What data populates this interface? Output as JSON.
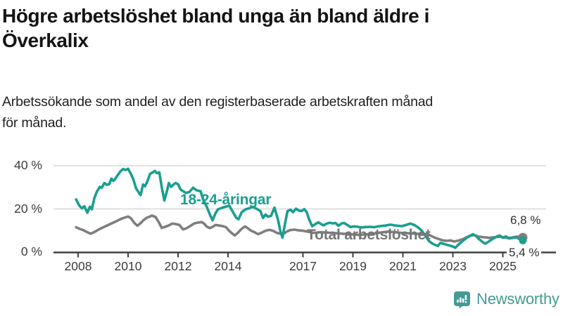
{
  "header": {
    "title_line1": "Högre arbetslöshet bland unga än bland äldre i",
    "title_line2": "Överkalix",
    "subtitle_line1": "Arbetssökande som andel av den registerbaserade arbetskraften månad",
    "subtitle_line2": "för månad."
  },
  "footer": {
    "brand": "Newsworthy"
  },
  "colors": {
    "youth_line": "#1a9e91",
    "total_line": "#7e7e7e",
    "axis": "#404040",
    "grid": "#e1e1e1",
    "tick_text": "#3c3c3c",
    "total_label_text": "#767676",
    "logo_teal": "#459a94"
  },
  "chart_data": {
    "type": "line",
    "title": "Högre arbetslöshet bland unga än bland äldre i Överkalix",
    "subtitle": "Arbetssökande som andel av den registerbaserade arbetskraften månad för månad.",
    "unit": "%",
    "grid": "horizontal-only",
    "x_axis": {
      "range": [
        2007.9,
        2025.9
      ],
      "ticks": [
        {
          "year": 2008,
          "label": "2008"
        },
        {
          "year": 2010,
          "label": "2010"
        },
        {
          "year": 2012,
          "label": "2012"
        },
        {
          "year": 2014,
          "label": "2014"
        },
        {
          "year": 2017,
          "label": "2017"
        },
        {
          "year": 2019,
          "label": "2019"
        },
        {
          "year": 2021,
          "label": "2021"
        },
        {
          "year": 2023,
          "label": "2023"
        },
        {
          "year": 2025,
          "label": "2025"
        }
      ]
    },
    "y_axis": {
      "range": [
        0,
        42
      ],
      "ticks": [
        {
          "value": 0,
          "label": "0 %"
        },
        {
          "value": 20,
          "label": "20 %"
        },
        {
          "value": 40,
          "label": "40 %"
        }
      ]
    },
    "series": [
      {
        "name": "Total arbetslöshet",
        "color": "#7e7e7e",
        "end_label": "6,8 %",
        "end_value": 6.8,
        "points": [
          [
            2007.92,
            11.5
          ],
          [
            2008.05,
            10.8
          ],
          [
            2008.2,
            10.2
          ],
          [
            2008.35,
            9.3
          ],
          [
            2008.5,
            8.5
          ],
          [
            2008.65,
            9.3
          ],
          [
            2008.8,
            10.3
          ],
          [
            2008.95,
            11.2
          ],
          [
            2009.1,
            12.0
          ],
          [
            2009.25,
            12.8
          ],
          [
            2009.4,
            13.6
          ],
          [
            2009.55,
            14.4
          ],
          [
            2009.7,
            15.3
          ],
          [
            2009.85,
            15.9
          ],
          [
            2010.0,
            16.5
          ],
          [
            2010.12,
            15.6
          ],
          [
            2010.25,
            13.5
          ],
          [
            2010.37,
            12.2
          ],
          [
            2010.5,
            13.4
          ],
          [
            2010.62,
            14.8
          ],
          [
            2010.75,
            15.9
          ],
          [
            2010.88,
            16.5
          ],
          [
            2010.95,
            16.9
          ],
          [
            2011.1,
            16.3
          ],
          [
            2011.22,
            14.0
          ],
          [
            2011.35,
            11.2
          ],
          [
            2011.48,
            11.7
          ],
          [
            2011.6,
            12.2
          ],
          [
            2011.77,
            13.2
          ],
          [
            2011.9,
            13.0
          ],
          [
            2012.05,
            12.6
          ],
          [
            2012.2,
            10.5
          ],
          [
            2012.35,
            11.1
          ],
          [
            2012.5,
            12.2
          ],
          [
            2012.65,
            13.3
          ],
          [
            2012.8,
            13.7
          ],
          [
            2012.95,
            13.9
          ],
          [
            2013.05,
            13.1
          ],
          [
            2013.15,
            11.8
          ],
          [
            2013.27,
            11.1
          ],
          [
            2013.4,
            11.8
          ],
          [
            2013.5,
            12.6
          ],
          [
            2013.65,
            12.3
          ],
          [
            2013.8,
            12.0
          ],
          [
            2013.92,
            11.5
          ],
          [
            2014.05,
            9.8
          ],
          [
            2014.15,
            8.8
          ],
          [
            2014.27,
            7.7
          ],
          [
            2014.4,
            9.0
          ],
          [
            2014.55,
            10.8
          ],
          [
            2014.68,
            11.9
          ],
          [
            2014.8,
            11.0
          ],
          [
            2014.92,
            9.9
          ],
          [
            2015.05,
            9.3
          ],
          [
            2015.2,
            8.3
          ],
          [
            2015.35,
            9.0
          ],
          [
            2015.5,
            9.9
          ],
          [
            2015.65,
            10.3
          ],
          [
            2015.8,
            9.9
          ],
          [
            2015.95,
            8.9
          ],
          [
            2016.1,
            8.5
          ],
          [
            2016.2,
            8.3
          ],
          [
            2016.35,
            9.5
          ],
          [
            2016.5,
            10.2
          ],
          [
            2016.65,
            10.4
          ],
          [
            2016.8,
            10.1
          ],
          [
            2016.95,
            10.0
          ],
          [
            2017.1,
            9.7
          ],
          [
            2017.25,
            9.3
          ],
          [
            2017.4,
            8.9
          ],
          [
            2017.55,
            9.0
          ],
          [
            2017.7,
            9.2
          ],
          [
            2017.85,
            9.1
          ],
          [
            2018.0,
            9.0
          ],
          [
            2018.2,
            8.8
          ],
          [
            2018.4,
            8.7
          ],
          [
            2018.6,
            8.5
          ],
          [
            2018.8,
            8.4
          ],
          [
            2019.0,
            8.2
          ],
          [
            2019.2,
            8.0
          ],
          [
            2019.4,
            8.1
          ],
          [
            2019.6,
            8.3
          ],
          [
            2019.8,
            8.5
          ],
          [
            2020.0,
            8.8
          ],
          [
            2020.2,
            9.2
          ],
          [
            2020.4,
            9.5
          ],
          [
            2020.6,
            9.3
          ],
          [
            2020.8,
            9.1
          ],
          [
            2021.0,
            8.8
          ],
          [
            2021.2,
            8.7
          ],
          [
            2021.4,
            8.6
          ],
          [
            2021.6,
            8.5
          ],
          [
            2021.8,
            8.4
          ],
          [
            2022.0,
            8.3
          ],
          [
            2022.15,
            7.4
          ],
          [
            2022.3,
            6.6
          ],
          [
            2022.45,
            6.0
          ],
          [
            2022.6,
            5.4
          ],
          [
            2022.75,
            5.2
          ],
          [
            2022.9,
            5.4
          ],
          [
            2023.05,
            4.9
          ],
          [
            2023.2,
            5.3
          ],
          [
            2023.4,
            6.0
          ],
          [
            2023.55,
            6.9
          ],
          [
            2023.7,
            7.6
          ],
          [
            2023.85,
            7.9
          ],
          [
            2024.0,
            7.3
          ],
          [
            2024.15,
            7.0
          ],
          [
            2024.3,
            6.8
          ],
          [
            2024.45,
            6.6
          ],
          [
            2024.6,
            6.8
          ],
          [
            2024.75,
            7.0
          ],
          [
            2024.9,
            7.2
          ],
          [
            2025.05,
            6.8
          ],
          [
            2025.2,
            6.5
          ],
          [
            2025.35,
            6.7
          ],
          [
            2025.5,
            7.1
          ],
          [
            2025.65,
            7.2
          ],
          [
            2025.8,
            6.8
          ]
        ]
      },
      {
        "name": "18-24-åringar",
        "color": "#1a9e91",
        "end_label": "5,4 %",
        "end_value": 5.4,
        "points": [
          [
            2007.92,
            24.4
          ],
          [
            2008.05,
            21.5
          ],
          [
            2008.15,
            20.3
          ],
          [
            2008.25,
            21.2
          ],
          [
            2008.37,
            18.2
          ],
          [
            2008.47,
            21.0
          ],
          [
            2008.55,
            19.8
          ],
          [
            2008.65,
            25.0
          ],
          [
            2008.75,
            28.0
          ],
          [
            2008.87,
            30.2
          ],
          [
            2008.95,
            29.8
          ],
          [
            2009.05,
            32.0
          ],
          [
            2009.15,
            31.2
          ],
          [
            2009.25,
            31.5
          ],
          [
            2009.33,
            34.0
          ],
          [
            2009.42,
            33.0
          ],
          [
            2009.55,
            35.0
          ],
          [
            2009.7,
            37.5
          ],
          [
            2009.8,
            38.5
          ],
          [
            2009.9,
            38.0
          ],
          [
            2010.0,
            38.6
          ],
          [
            2010.1,
            36.5
          ],
          [
            2010.2,
            34.0
          ],
          [
            2010.32,
            29.5
          ],
          [
            2010.45,
            27.2
          ],
          [
            2010.5,
            26.4
          ],
          [
            2010.6,
            31.3
          ],
          [
            2010.68,
            30.5
          ],
          [
            2010.78,
            33.0
          ],
          [
            2010.88,
            36.2
          ],
          [
            2011.0,
            37.0
          ],
          [
            2011.07,
            37.6
          ],
          [
            2011.15,
            36.6
          ],
          [
            2011.25,
            36.9
          ],
          [
            2011.35,
            30.0
          ],
          [
            2011.45,
            23.9
          ],
          [
            2011.55,
            28.0
          ],
          [
            2011.63,
            32.0
          ],
          [
            2011.72,
            30.2
          ],
          [
            2011.82,
            31.3
          ],
          [
            2011.9,
            32.0
          ],
          [
            2012.0,
            31.4
          ],
          [
            2012.1,
            29.0
          ],
          [
            2012.2,
            28.2
          ],
          [
            2012.32,
            27.4
          ],
          [
            2012.45,
            27.8
          ],
          [
            2012.6,
            29.8
          ],
          [
            2012.75,
            28.6
          ],
          [
            2012.9,
            28.2
          ],
          [
            2013.0,
            24.5
          ],
          [
            2013.15,
            21.0
          ],
          [
            2013.27,
            17.5
          ],
          [
            2013.38,
            14.7
          ],
          [
            2013.5,
            18.0
          ],
          [
            2013.6,
            19.8
          ],
          [
            2013.75,
            20.5
          ],
          [
            2013.9,
            21.0
          ],
          [
            2014.05,
            21.5
          ],
          [
            2014.2,
            18.5
          ],
          [
            2014.32,
            16.0
          ],
          [
            2014.42,
            15.2
          ],
          [
            2014.55,
            18.5
          ],
          [
            2014.7,
            19.8
          ],
          [
            2014.85,
            20.3
          ],
          [
            2015.0,
            21.0
          ],
          [
            2015.15,
            20.0
          ],
          [
            2015.3,
            19.0
          ],
          [
            2015.4,
            15.8
          ],
          [
            2015.5,
            17.4
          ],
          [
            2015.6,
            16.4
          ],
          [
            2015.72,
            16.8
          ],
          [
            2015.86,
            20.6
          ],
          [
            2016.0,
            15.0
          ],
          [
            2016.1,
            9.5
          ],
          [
            2016.18,
            6.7
          ],
          [
            2016.28,
            13.0
          ],
          [
            2016.38,
            19.0
          ],
          [
            2016.5,
            19.6
          ],
          [
            2016.6,
            18.5
          ],
          [
            2016.72,
            20.1
          ],
          [
            2016.85,
            19.2
          ],
          [
            2016.95,
            19.0
          ],
          [
            2017.05,
            19.9
          ],
          [
            2017.15,
            18.5
          ],
          [
            2017.25,
            15.0
          ],
          [
            2017.37,
            12.0
          ],
          [
            2017.5,
            13.0
          ],
          [
            2017.62,
            13.8
          ],
          [
            2017.72,
            13.0
          ],
          [
            2017.82,
            12.4
          ],
          [
            2017.95,
            13.2
          ],
          [
            2018.07,
            13.6
          ],
          [
            2018.2,
            13.3
          ],
          [
            2018.3,
            13.5
          ],
          [
            2018.42,
            12.2
          ],
          [
            2018.55,
            13.3
          ],
          [
            2018.65,
            13.5
          ],
          [
            2018.77,
            12.6
          ],
          [
            2018.9,
            11.6
          ],
          [
            2019.05,
            11.9
          ],
          [
            2019.2,
            11.7
          ],
          [
            2019.35,
            11.4
          ],
          [
            2019.5,
            11.6
          ],
          [
            2019.7,
            11.7
          ],
          [
            2019.85,
            11.5
          ],
          [
            2020.0,
            11.9
          ],
          [
            2020.15,
            12.1
          ],
          [
            2020.3,
            12.3
          ],
          [
            2020.5,
            12.7
          ],
          [
            2020.65,
            12.4
          ],
          [
            2020.8,
            12.2
          ],
          [
            2020.95,
            12.0
          ],
          [
            2021.1,
            12.5
          ],
          [
            2021.3,
            13.2
          ],
          [
            2021.45,
            12.6
          ],
          [
            2021.6,
            11.5
          ],
          [
            2021.75,
            10.0
          ],
          [
            2021.9,
            7.5
          ],
          [
            2022.05,
            5.0
          ],
          [
            2022.2,
            3.8
          ],
          [
            2022.3,
            3.3
          ],
          [
            2022.4,
            2.8
          ],
          [
            2022.5,
            4.3
          ],
          [
            2022.6,
            3.9
          ],
          [
            2022.72,
            3.5
          ],
          [
            2022.85,
            3.1
          ],
          [
            2023.0,
            2.6
          ],
          [
            2023.1,
            2.0
          ],
          [
            2023.25,
            3.8
          ],
          [
            2023.4,
            5.2
          ],
          [
            2023.55,
            6.6
          ],
          [
            2023.7,
            7.6
          ],
          [
            2023.8,
            8.3
          ],
          [
            2023.92,
            7.5
          ],
          [
            2024.05,
            6.0
          ],
          [
            2024.2,
            4.6
          ],
          [
            2024.3,
            3.9
          ],
          [
            2024.45,
            5.0
          ],
          [
            2024.6,
            6.2
          ],
          [
            2024.75,
            7.2
          ],
          [
            2024.87,
            7.7
          ],
          [
            2025.0,
            6.6
          ],
          [
            2025.12,
            7.3
          ],
          [
            2025.25,
            6.3
          ],
          [
            2025.4,
            6.6
          ],
          [
            2025.55,
            6.9
          ],
          [
            2025.68,
            5.9
          ],
          [
            2025.8,
            5.4
          ]
        ]
      }
    ]
  }
}
